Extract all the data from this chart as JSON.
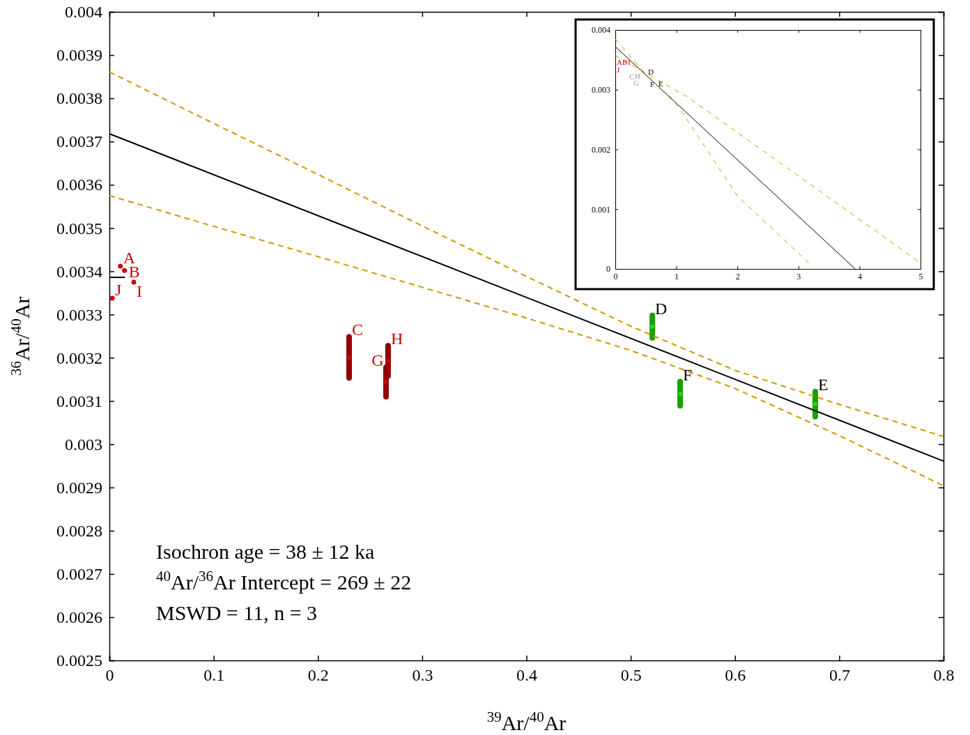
{
  "chart_data": [
    {
      "type": "scatter",
      "xlabel": "$^{39}$Ar/$^{40}$Ar",
      "ylabel": "$^{36}$Ar/$^{40}$Ar",
      "annotations": [
        "Isochron age =  38 ± 12 ka",
        "$^{40}$Ar/$^{36}$Ar Intercept =  269 ± 22",
        "MSWD = 11, n = 3"
      ],
      "xlim": [
        0,
        0.8
      ],
      "xticks": [
        0,
        0.1,
        0.2,
        0.3,
        0.4,
        0.5,
        0.6,
        0.7,
        0.8
      ],
      "ylim": [
        0.0025,
        0.004
      ],
      "yticks": [
        0.0025,
        0.0026,
        0.0027,
        0.0028,
        0.0029,
        0.003,
        0.0031,
        0.0032,
        0.0033,
        0.0034,
        0.0035,
        0.0036,
        0.0037,
        0.0038,
        0.0039,
        0.004
      ],
      "series": [
        {
          "color": "#cc0000",
          "x": [
            0.0105,
            0.0145,
            0.2299,
            0.2653,
            0.2673,
            0.0234,
            0.0027
          ],
          "values": [
            0.003412,
            0.003402,
            0.003201,
            0.003144,
            0.003193,
            0.003375,
            0.003338
          ],
          "errors": [
            null,
            null,
            4.75e-05,
            3.4e-05,
            3.5e-05,
            null,
            null
          ],
          "value_labels": [
            "A",
            "B",
            "C",
            "G",
            "H",
            "I",
            "J"
          ]
        },
        {
          "color": "#22dd00",
          "x": [
            0.5207,
            0.677,
            0.5474
          ],
          "values": [
            0.003272,
            0.003093,
            0.003117
          ],
          "errors": [
            2.6e-05,
            2.9e-05,
            2.8e-05
          ],
          "value_labels": [
            "D",
            "E",
            "F"
          ]
        },
        {
          "type": "line",
          "color": "#000000",
          "line_style": "solid",
          "x": [
            0,
            0.8
          ],
          "values": [
            0.003718,
            0.002961
          ]
        },
        {
          "type": "line",
          "color": "#cc9900",
          "line_style": "dashed",
          "x": [
            0,
            0.1,
            0.2,
            0.3,
            0.4,
            0.5,
            0.6,
            0.7,
            0.8
          ],
          "values": [
            0.003861,
            0.003742,
            0.003624,
            0.003505,
            0.003388,
            0.003273,
            0.003171,
            0.003092,
            0.003018
          ]
        },
        {
          "type": "line",
          "color": "#cc9900",
          "line_style": "dashed",
          "x": [
            0,
            0.1,
            0.2,
            0.3,
            0.4,
            0.5,
            0.6,
            0.7,
            0.8
          ],
          "values": [
            0.003575,
            0.003504,
            0.003434,
            0.003363,
            0.003292,
            0.003217,
            0.003129,
            0.00302,
            0.002904
          ]
        },
        {
          "type": "line",
          "color": "#000000",
          "line_style": "solid",
          "x": [
            0,
            0.015
          ],
          "values": [
            0.003386,
            0.003386
          ]
        }
      ]
    },
    {
      "type": "line",
      "xlim": [
        0,
        5
      ],
      "xticks": [
        0,
        1,
        2,
        3,
        4,
        5
      ],
      "ylim": [
        0,
        0.004
      ],
      "yticks": [
        0,
        0.001,
        0.002,
        0.003,
        0.004
      ],
      "annotations": [
        "A",
        "B",
        "I",
        "J",
        "C",
        "G",
        "H",
        "D",
        "E",
        "F"
      ],
      "series": [
        {
          "type": "line",
          "color": "#000000",
          "line_style": "solid",
          "x": [
            0,
            3.93
          ],
          "values": [
            0.00372,
            0
          ]
        },
        {
          "type": "line",
          "color": "#cc9900",
          "line_style": "dashed",
          "x": [
            0,
            0.49,
            1.03,
            2.01,
            3.17
          ],
          "values": [
            0.00385,
            0.00327,
            0.00272,
            0.00121,
            0.0001
          ]
        },
        {
          "type": "line",
          "color": "#cc9900",
          "line_style": "dashed",
          "x": [
            0,
            1.18,
            3.16,
            5
          ],
          "values": [
            0.00357,
            0.00288,
            0.00144,
            0.0001
          ]
        }
      ]
    }
  ]
}
